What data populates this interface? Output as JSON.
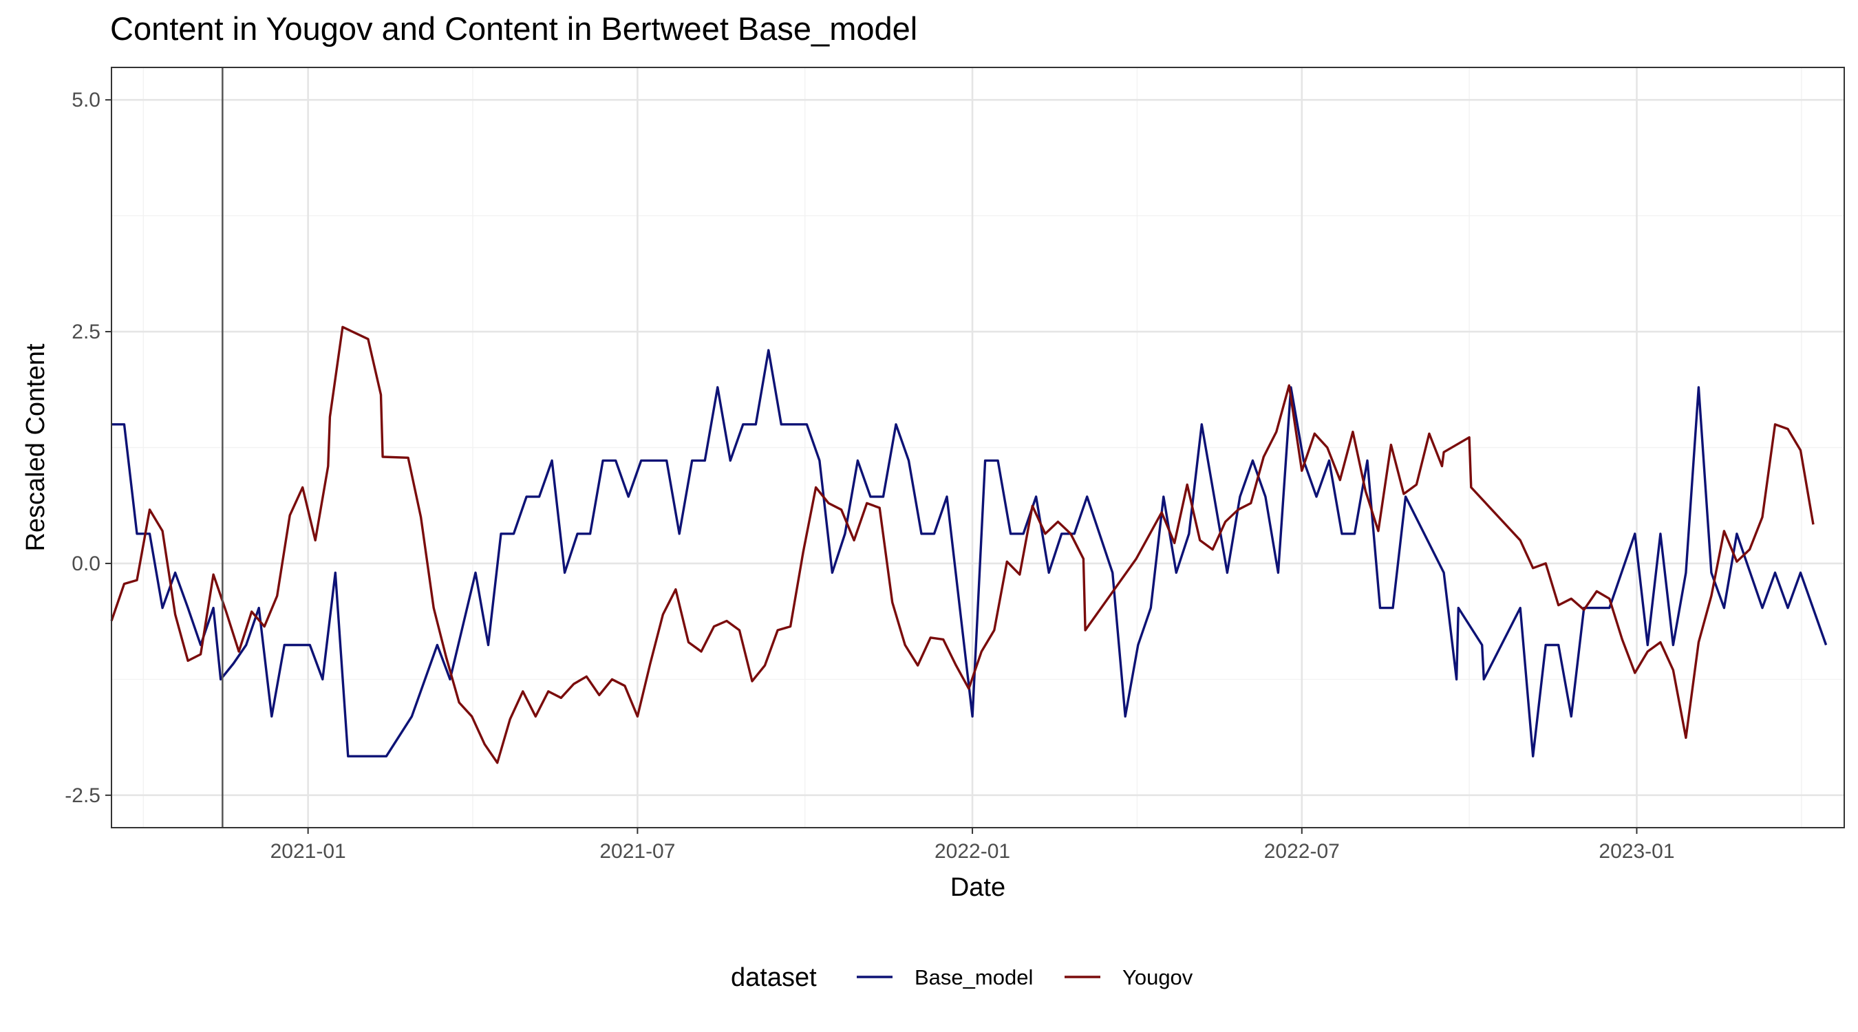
{
  "chart_data": {
    "type": "line",
    "title": "Content  in Yougov and  Content  in Bertweet  Base_model",
    "xlabel": "Date",
    "ylabel": "Rescaled  Content",
    "x_axis": {
      "type": "date",
      "range": [
        "2020-09-15",
        "2023-04-25"
      ],
      "ticks": [
        "2021-01-01",
        "2021-07-01",
        "2022-01-01",
        "2022-07-01",
        "2023-01-01"
      ],
      "tick_labels": [
        "2021-01",
        "2021-07",
        "2022-01",
        "2022-07",
        "2023-01"
      ]
    },
    "y_axis": {
      "range": [
        -2.85,
        5.35
      ],
      "ticks": [
        -2.5,
        0.0,
        2.5,
        5.0
      ],
      "tick_labels": [
        "-2.5",
        "0.0",
        "2.5",
        "5.0"
      ]
    },
    "vertical_line_x": "2020-11-15",
    "grid": true,
    "legend": {
      "title": "dataset",
      "position": "bottom"
    },
    "series": [
      {
        "name": "Base_model",
        "color": "#0d1275",
        "points": [
          [
            "2020-09-15",
            1.5
          ],
          [
            "2020-09-22",
            1.5
          ],
          [
            "2020-09-29",
            0.32
          ],
          [
            "2020-10-06",
            0.32
          ],
          [
            "2020-10-13",
            -0.48
          ],
          [
            "2020-10-20",
            -0.1
          ],
          [
            "2020-10-27",
            -0.48
          ],
          [
            "2020-11-03",
            -0.88
          ],
          [
            "2020-11-10",
            -0.48
          ],
          [
            "2020-11-14",
            -1.25
          ],
          [
            "2020-11-21",
            -1.08
          ],
          [
            "2020-11-28",
            -0.88
          ],
          [
            "2020-12-05",
            -0.48
          ],
          [
            "2020-12-12",
            -1.65
          ],
          [
            "2020-12-19",
            -0.88
          ],
          [
            "2020-12-26",
            -0.88
          ],
          [
            "2021-01-02",
            -0.88
          ],
          [
            "2021-01-09",
            -1.25
          ],
          [
            "2021-01-16",
            -0.1
          ],
          [
            "2021-01-23",
            -2.08
          ],
          [
            "2021-02-13",
            -2.08
          ],
          [
            "2021-02-27",
            -1.65
          ],
          [
            "2021-03-13",
            -0.88
          ],
          [
            "2021-03-20",
            -1.25
          ],
          [
            "2021-04-03",
            -0.1
          ],
          [
            "2021-04-10",
            -0.88
          ],
          [
            "2021-04-17",
            0.32
          ],
          [
            "2021-04-24",
            0.32
          ],
          [
            "2021-05-01",
            0.72
          ],
          [
            "2021-05-08",
            0.72
          ],
          [
            "2021-05-15",
            1.11
          ],
          [
            "2021-05-22",
            -0.1
          ],
          [
            "2021-05-29",
            0.32
          ],
          [
            "2021-06-05",
            0.32
          ],
          [
            "2021-06-12",
            1.11
          ],
          [
            "2021-06-19",
            1.11
          ],
          [
            "2021-06-26",
            0.72
          ],
          [
            "2021-07-03",
            1.11
          ],
          [
            "2021-07-17",
            1.11
          ],
          [
            "2021-07-24",
            0.32
          ],
          [
            "2021-07-31",
            1.11
          ],
          [
            "2021-08-07",
            1.11
          ],
          [
            "2021-08-14",
            1.9
          ],
          [
            "2021-08-21",
            1.11
          ],
          [
            "2021-08-28",
            1.5
          ],
          [
            "2021-09-04",
            1.5
          ],
          [
            "2021-09-11",
            2.3
          ],
          [
            "2021-09-18",
            1.5
          ],
          [
            "2021-10-02",
            1.5
          ],
          [
            "2021-10-09",
            1.11
          ],
          [
            "2021-10-16",
            -0.1
          ],
          [
            "2021-10-23",
            0.32
          ],
          [
            "2021-10-30",
            1.11
          ],
          [
            "2021-11-06",
            0.72
          ],
          [
            "2021-11-13",
            0.72
          ],
          [
            "2021-11-20",
            1.5
          ],
          [
            "2021-11-27",
            1.11
          ],
          [
            "2021-12-04",
            0.32
          ],
          [
            "2021-12-11",
            0.32
          ],
          [
            "2021-12-18",
            0.72
          ],
          [
            "2022-01-01",
            -1.65
          ],
          [
            "2022-01-08",
            1.11
          ],
          [
            "2022-01-15",
            1.11
          ],
          [
            "2022-01-22",
            0.32
          ],
          [
            "2022-01-29",
            0.32
          ],
          [
            "2022-02-05",
            0.72
          ],
          [
            "2022-02-12",
            -0.1
          ],
          [
            "2022-02-19",
            0.32
          ],
          [
            "2022-02-26",
            0.32
          ],
          [
            "2022-03-05",
            0.72
          ],
          [
            "2022-03-19",
            -0.1
          ],
          [
            "2022-03-26",
            -1.65
          ],
          [
            "2022-04-02",
            -0.88
          ],
          [
            "2022-04-09",
            -0.48
          ],
          [
            "2022-04-16",
            0.72
          ],
          [
            "2022-04-23",
            -0.1
          ],
          [
            "2022-04-30",
            0.32
          ],
          [
            "2022-05-07",
            1.5
          ],
          [
            "2022-05-21",
            -0.1
          ],
          [
            "2022-05-28",
            0.72
          ],
          [
            "2022-06-04",
            1.11
          ],
          [
            "2022-06-11",
            0.72
          ],
          [
            "2022-06-18",
            -0.1
          ],
          [
            "2022-06-25",
            1.9
          ],
          [
            "2022-07-02",
            1.11
          ],
          [
            "2022-07-09",
            0.72
          ],
          [
            "2022-07-16",
            1.11
          ],
          [
            "2022-07-23",
            0.32
          ],
          [
            "2022-07-30",
            0.32
          ],
          [
            "2022-08-06",
            1.11
          ],
          [
            "2022-08-13",
            -0.48
          ],
          [
            "2022-08-20",
            -0.48
          ],
          [
            "2022-08-27",
            0.72
          ],
          [
            "2022-09-17",
            -0.1
          ],
          [
            "2022-09-24",
            -1.25
          ],
          [
            "2022-09-25",
            -0.48
          ],
          [
            "2022-10-08",
            -0.88
          ],
          [
            "2022-10-09",
            -1.25
          ],
          [
            "2022-10-29",
            -0.48
          ],
          [
            "2022-11-05",
            -2.08
          ],
          [
            "2022-11-12",
            -0.88
          ],
          [
            "2022-11-19",
            -0.88
          ],
          [
            "2022-11-26",
            -1.65
          ],
          [
            "2022-12-03",
            -0.48
          ],
          [
            "2022-12-17",
            -0.48
          ],
          [
            "2022-12-31",
            0.32
          ],
          [
            "2023-01-07",
            -0.88
          ],
          [
            "2023-01-14",
            0.32
          ],
          [
            "2023-01-21",
            -0.88
          ],
          [
            "2023-01-28",
            -0.1
          ],
          [
            "2023-02-04",
            1.9
          ],
          [
            "2023-02-11",
            -0.1
          ],
          [
            "2023-02-18",
            -0.48
          ],
          [
            "2023-02-25",
            0.32
          ],
          [
            "2023-03-11",
            -0.48
          ],
          [
            "2023-03-18",
            -0.1
          ],
          [
            "2023-03-25",
            -0.48
          ],
          [
            "2023-04-01",
            -0.1
          ],
          [
            "2023-04-15",
            -0.88
          ]
        ]
      },
      {
        "name": "Yougov",
        "color": "#7a0c0c",
        "points": [
          [
            "2020-09-15",
            -0.62
          ],
          [
            "2020-09-22",
            -0.22
          ],
          [
            "2020-09-29",
            -0.18
          ],
          [
            "2020-10-06",
            0.58
          ],
          [
            "2020-10-13",
            0.35
          ],
          [
            "2020-10-20",
            -0.55
          ],
          [
            "2020-10-27",
            -1.05
          ],
          [
            "2020-11-03",
            -0.98
          ],
          [
            "2020-11-10",
            -0.12
          ],
          [
            "2020-11-17",
            -0.52
          ],
          [
            "2020-11-24",
            -0.95
          ],
          [
            "2020-12-01",
            -0.52
          ],
          [
            "2020-12-08",
            -0.68
          ],
          [
            "2020-12-15",
            -0.35
          ],
          [
            "2020-12-22",
            0.52
          ],
          [
            "2020-12-29",
            0.82
          ],
          [
            "2021-01-05",
            0.25
          ],
          [
            "2021-01-12",
            1.05
          ],
          [
            "2021-01-13",
            1.58
          ],
          [
            "2021-01-20",
            2.55
          ],
          [
            "2021-02-03",
            2.42
          ],
          [
            "2021-02-10",
            1.82
          ],
          [
            "2021-02-11",
            1.15
          ],
          [
            "2021-02-25",
            1.14
          ],
          [
            "2021-03-04",
            0.5
          ],
          [
            "2021-03-11",
            -0.48
          ],
          [
            "2021-03-18",
            -1.02
          ],
          [
            "2021-03-25",
            -1.5
          ],
          [
            "2021-04-01",
            -1.65
          ],
          [
            "2021-04-08",
            -1.95
          ],
          [
            "2021-04-15",
            -2.15
          ],
          [
            "2021-04-22",
            -1.68
          ],
          [
            "2021-04-29",
            -1.38
          ],
          [
            "2021-05-06",
            -1.65
          ],
          [
            "2021-05-13",
            -1.38
          ],
          [
            "2021-05-20",
            -1.45
          ],
          [
            "2021-05-27",
            -1.3
          ],
          [
            "2021-06-03",
            -1.22
          ],
          [
            "2021-06-10",
            -1.42
          ],
          [
            "2021-06-17",
            -1.25
          ],
          [
            "2021-06-24",
            -1.32
          ],
          [
            "2021-07-01",
            -1.65
          ],
          [
            "2021-07-08",
            -1.08
          ],
          [
            "2021-07-15",
            -0.55
          ],
          [
            "2021-07-22",
            -0.28
          ],
          [
            "2021-07-29",
            -0.85
          ],
          [
            "2021-08-05",
            -0.95
          ],
          [
            "2021-08-12",
            -0.68
          ],
          [
            "2021-08-19",
            -0.62
          ],
          [
            "2021-08-26",
            -0.72
          ],
          [
            "2021-09-02",
            -1.27
          ],
          [
            "2021-09-09",
            -1.1
          ],
          [
            "2021-09-16",
            -0.72
          ],
          [
            "2021-09-23",
            -0.68
          ],
          [
            "2021-09-30",
            0.12
          ],
          [
            "2021-10-07",
            0.82
          ],
          [
            "2021-10-14",
            0.65
          ],
          [
            "2021-10-21",
            0.58
          ],
          [
            "2021-10-28",
            0.25
          ],
          [
            "2021-11-04",
            0.65
          ],
          [
            "2021-11-11",
            0.6
          ],
          [
            "2021-11-18",
            -0.42
          ],
          [
            "2021-11-25",
            -0.88
          ],
          [
            "2021-12-02",
            -1.1
          ],
          [
            "2021-12-09",
            -0.8
          ],
          [
            "2021-12-16",
            -0.82
          ],
          [
            "2021-12-23",
            -1.1
          ],
          [
            "2021-12-30",
            -1.35
          ],
          [
            "2022-01-06",
            -0.95
          ],
          [
            "2022-01-13",
            -0.72
          ],
          [
            "2022-01-20",
            0.02
          ],
          [
            "2022-01-27",
            -0.12
          ],
          [
            "2022-02-03",
            0.62
          ],
          [
            "2022-02-10",
            0.32
          ],
          [
            "2022-02-17",
            0.45
          ],
          [
            "2022-02-24",
            0.32
          ],
          [
            "2022-03-03",
            0.05
          ],
          [
            "2022-03-04",
            -0.72
          ],
          [
            "2022-04-01",
            0.05
          ],
          [
            "2022-04-15",
            0.55
          ],
          [
            "2022-04-22",
            0.22
          ],
          [
            "2022-04-29",
            0.85
          ],
          [
            "2022-05-06",
            0.25
          ],
          [
            "2022-05-13",
            0.15
          ],
          [
            "2022-05-20",
            0.45
          ],
          [
            "2022-05-27",
            0.58
          ],
          [
            "2022-06-03",
            0.65
          ],
          [
            "2022-06-10",
            1.15
          ],
          [
            "2022-06-17",
            1.42
          ],
          [
            "2022-06-24",
            1.92
          ],
          [
            "2022-07-01",
            1.0
          ],
          [
            "2022-07-08",
            1.4
          ],
          [
            "2022-07-15",
            1.25
          ],
          [
            "2022-07-22",
            0.9
          ],
          [
            "2022-07-29",
            1.42
          ],
          [
            "2022-08-05",
            0.78
          ],
          [
            "2022-08-12",
            0.35
          ],
          [
            "2022-08-19",
            1.28
          ],
          [
            "2022-08-26",
            0.75
          ],
          [
            "2022-09-02",
            0.85
          ],
          [
            "2022-09-09",
            1.4
          ],
          [
            "2022-09-16",
            1.05
          ],
          [
            "2022-09-17",
            1.2
          ],
          [
            "2022-10-01",
            1.36
          ],
          [
            "2022-10-02",
            0.82
          ],
          [
            "2022-10-29",
            0.25
          ],
          [
            "2022-11-05",
            -0.05
          ],
          [
            "2022-11-12",
            0.0
          ],
          [
            "2022-11-19",
            -0.45
          ],
          [
            "2022-11-26",
            -0.38
          ],
          [
            "2022-12-03",
            -0.5
          ],
          [
            "2022-12-10",
            -0.3
          ],
          [
            "2022-12-17",
            -0.38
          ],
          [
            "2022-12-24",
            -0.82
          ],
          [
            "2022-12-31",
            -1.18
          ],
          [
            "2023-01-07",
            -0.95
          ],
          [
            "2023-01-14",
            -0.85
          ],
          [
            "2023-01-21",
            -1.15
          ],
          [
            "2023-01-28",
            -1.88
          ],
          [
            "2023-02-04",
            -0.85
          ],
          [
            "2023-02-11",
            -0.35
          ],
          [
            "2023-02-18",
            0.35
          ],
          [
            "2023-02-25",
            0.02
          ],
          [
            "2023-03-04",
            0.15
          ],
          [
            "2023-03-11",
            0.5
          ],
          [
            "2023-03-18",
            1.5
          ],
          [
            "2023-03-25",
            1.45
          ],
          [
            "2023-04-01",
            1.22
          ],
          [
            "2023-04-08",
            0.42
          ]
        ]
      }
    ]
  }
}
